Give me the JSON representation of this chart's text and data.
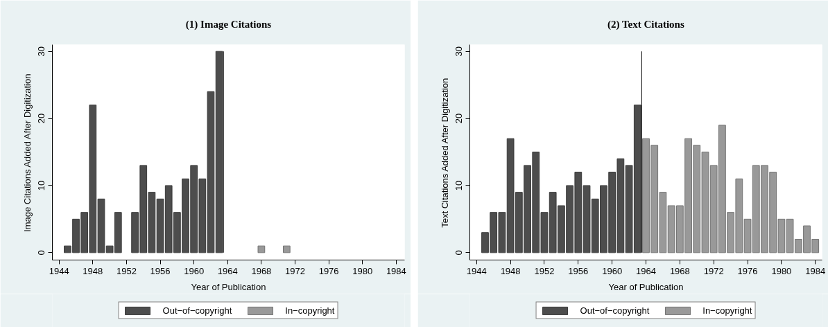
{
  "chart_data": [
    {
      "type": "bar",
      "title": "(1) Image Citations",
      "xlabel": "Year of Publication",
      "ylabel": "Image Citations Added After Digitization",
      "series": [
        {
          "name": "Out−of−copyright",
          "color": "#4d4d4d",
          "x": [
            1945,
            1946,
            1947,
            1948,
            1949,
            1950,
            1951,
            1953,
            1954,
            1955,
            1956,
            1957,
            1958,
            1959,
            1960,
            1961,
            1962,
            1963
          ],
          "values": [
            1,
            5,
            6,
            22,
            8,
            1,
            6,
            6,
            13,
            9,
            8,
            10,
            6,
            11,
            13,
            11,
            24,
            30
          ]
        },
        {
          "name": "In−copyright",
          "color": "#999999",
          "x": [
            1968,
            1971
          ],
          "values": [
            1,
            1
          ]
        }
      ],
      "xlim": [
        1943.2,
        1985
      ],
      "xticks": [
        1944,
        1948,
        1952,
        1956,
        1960,
        1964,
        1968,
        1972,
        1976,
        1980,
        1984
      ],
      "ylim": [
        -1.1,
        31
      ],
      "yticks": [
        0,
        10,
        20,
        30
      ],
      "ref_lines": [
        {
          "axis": "x",
          "value": 1963.5,
          "color": "#000000"
        }
      ],
      "legend": "bottom",
      "grid": false
    },
    {
      "type": "bar",
      "title": "(2) Text Citations",
      "xlabel": "Year of Publication",
      "ylabel": "Text Citations Added After Digitization",
      "series": [
        {
          "name": "Out−of−copyright",
          "color": "#4d4d4d",
          "x": [
            1945,
            1946,
            1947,
            1948,
            1949,
            1950,
            1951,
            1952,
            1953,
            1954,
            1955,
            1956,
            1957,
            1958,
            1959,
            1960,
            1961,
            1962,
            1963
          ],
          "values": [
            3,
            6,
            6,
            17,
            9,
            13,
            15,
            6,
            9,
            7,
            10,
            12,
            10,
            8,
            10,
            12,
            14,
            13,
            22
          ]
        },
        {
          "name": "In−copyright",
          "color": "#999999",
          "x": [
            1964,
            1965,
            1966,
            1967,
            1968,
            1969,
            1970,
            1971,
            1972,
            1973,
            1974,
            1975,
            1976,
            1977,
            1978,
            1979,
            1980,
            1981,
            1982,
            1983,
            1984
          ],
          "values": [
            17,
            16,
            9,
            7,
            7,
            17,
            16,
            15,
            13,
            19,
            6,
            11,
            5,
            13,
            13,
            12,
            5,
            5,
            2,
            4,
            2
          ]
        }
      ],
      "xlim": [
        1943.2,
        1984.8
      ],
      "xticks": [
        1944,
        1948,
        1952,
        1956,
        1960,
        1964,
        1968,
        1972,
        1976,
        1980,
        1984
      ],
      "ylim": [
        -1.1,
        31
      ],
      "yticks": [
        0,
        10,
        20,
        30
      ],
      "ref_lines": [
        {
          "axis": "x",
          "value": 1963.5,
          "color": "#000000"
        }
      ],
      "legend": "bottom",
      "grid": false
    }
  ]
}
